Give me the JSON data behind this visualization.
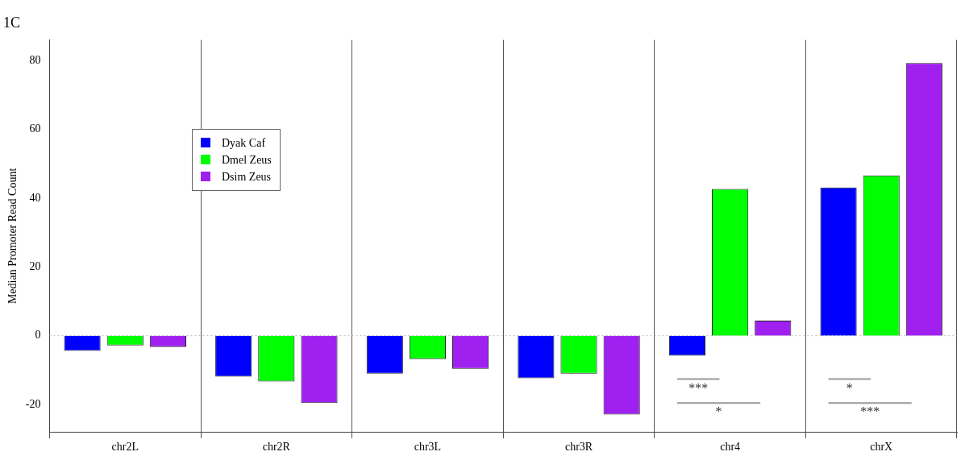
{
  "chart_data": {
    "type": "bar",
    "title": "1C",
    "ylabel": "Median Promoter Read Count",
    "categories": [
      "chr2L",
      "chr2R",
      "chr3L",
      "chr3R",
      "chr4",
      "chrX"
    ],
    "series": [
      {
        "name": "Dyak Caf",
        "color": "#0000ff",
        "values": [
          -4.4,
          -11.9,
          -11.0,
          -12.4,
          -5.8,
          43.1
        ]
      },
      {
        "name": "Dmel Zeus",
        "color": "#00ff00",
        "values": [
          -2.8,
          -13.3,
          -6.8,
          -11.0,
          42.7,
          46.6
        ]
      },
      {
        "name": "Dsim Zeus",
        "color": "#a020f0",
        "values": [
          -3.3,
          -19.6,
          -9.6,
          -22.9,
          4.4,
          79.3
        ]
      }
    ],
    "ylim": [
      -28,
      86
    ],
    "yticks": [
      -20,
      0,
      20,
      40,
      60,
      80
    ],
    "grid": "x",
    "legend": "top left",
    "ref_lines": [
      {
        "axis": "y",
        "value": 0,
        "color": "#bbbbbb",
        "line_style": "dotted"
      }
    ],
    "annotations": [
      "***",
      "*",
      "*",
      "***"
    ]
  }
}
